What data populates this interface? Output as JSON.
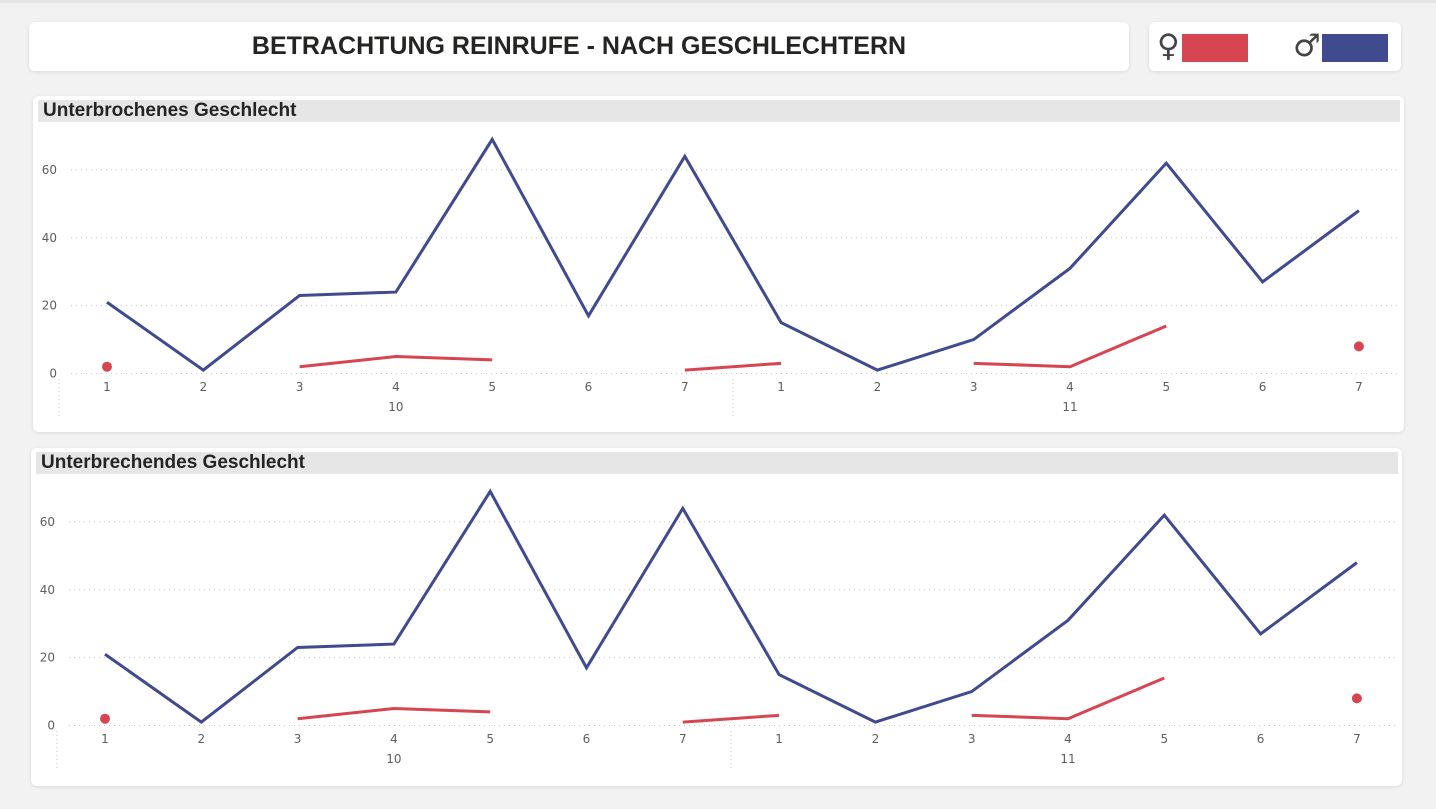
{
  "title": "BETRACHTUNG REINRUFE - NACH GESCHLECHTERN",
  "legend": {
    "female": {
      "symbol": "♀",
      "color": "#d64550"
    },
    "male": {
      "symbol": "♂",
      "color": "#3f4a8f"
    }
  },
  "colors": {
    "female": "#d64550",
    "male": "#3f4a8f",
    "grid": "#c8c6c4",
    "axis_text": "#605e5c"
  },
  "chart_data": [
    {
      "type": "line",
      "title": "Unterbrochenes Geschlecht",
      "categories": [
        "1",
        "2",
        "3",
        "4",
        "5",
        "6",
        "7",
        "1",
        "2",
        "3",
        "4",
        "5",
        "6",
        "7"
      ],
      "groups": [
        {
          "label": "10",
          "count": 7
        },
        {
          "label": "11",
          "count": 7
        }
      ],
      "yticks": [
        0,
        20,
        40,
        60
      ],
      "ylim": [
        0,
        70
      ],
      "grid": true,
      "series": [
        {
          "key": "male",
          "values": [
            21,
            1,
            23,
            24,
            69,
            17,
            64,
            15,
            1,
            10,
            31,
            62,
            27,
            48
          ]
        },
        {
          "key": "female",
          "values": [
            2,
            null,
            2,
            5,
            4,
            null,
            1,
            3,
            null,
            3,
            2,
            14,
            null,
            8
          ]
        }
      ]
    },
    {
      "type": "line",
      "title": "Unterbrechendes Geschlecht",
      "categories": [
        "1",
        "2",
        "3",
        "4",
        "5",
        "6",
        "7",
        "1",
        "2",
        "3",
        "4",
        "5",
        "6",
        "7"
      ],
      "groups": [
        {
          "label": "10",
          "count": 7
        },
        {
          "label": "11",
          "count": 7
        }
      ],
      "yticks": [
        0,
        20,
        40,
        60
      ],
      "ylim": [
        0,
        70
      ],
      "grid": true,
      "series": [
        {
          "key": "male",
          "values": [
            21,
            1,
            23,
            24,
            69,
            17,
            64,
            15,
            1,
            10,
            31,
            62,
            27,
            48
          ]
        },
        {
          "key": "female",
          "values": [
            2,
            null,
            2,
            5,
            4,
            null,
            1,
            3,
            null,
            3,
            2,
            14,
            null,
            8
          ]
        }
      ]
    }
  ]
}
